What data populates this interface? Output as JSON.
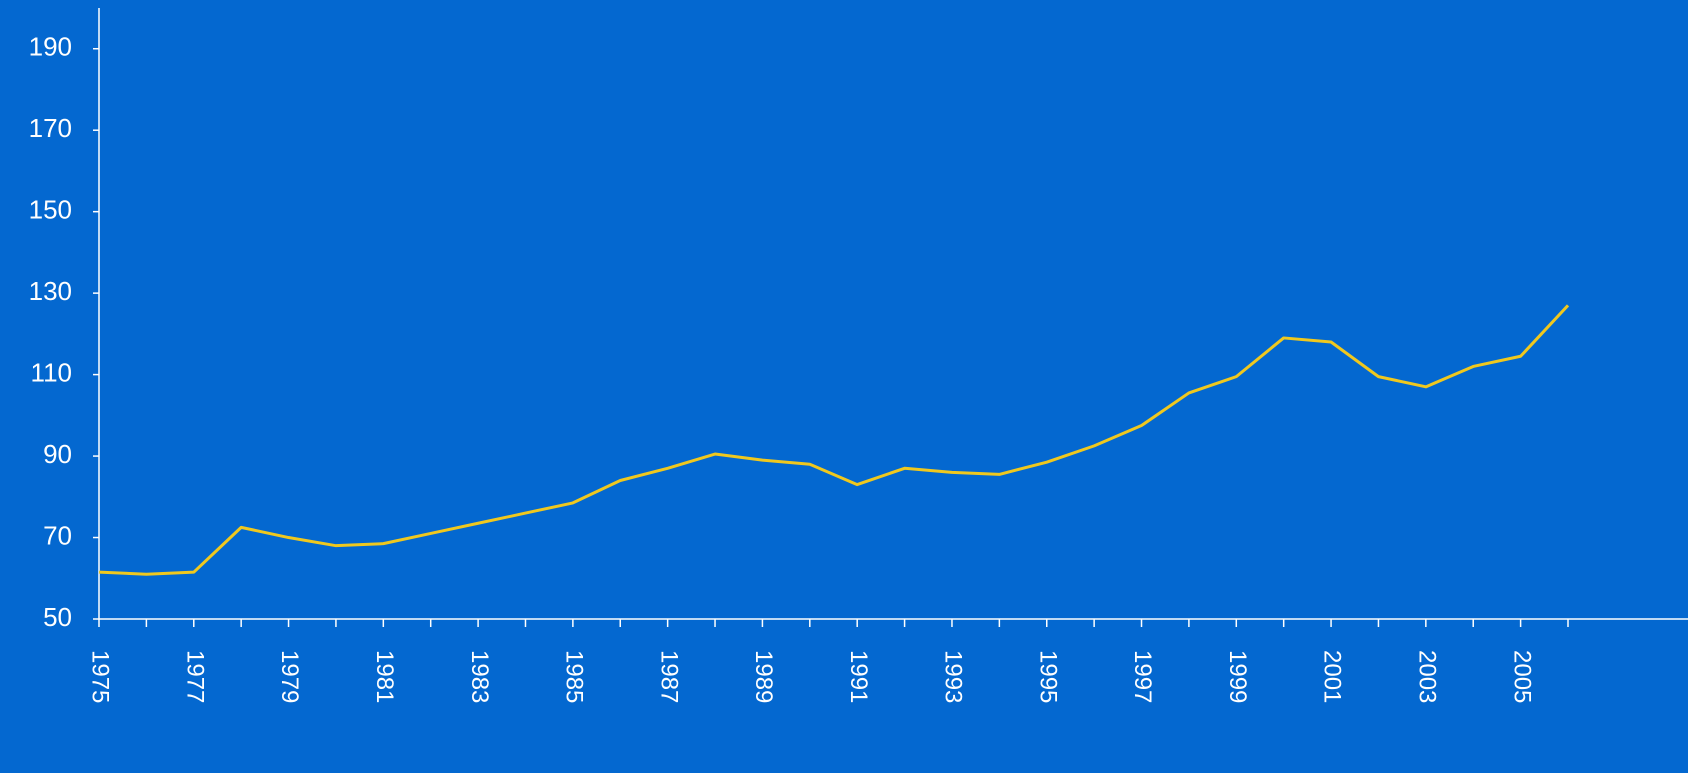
{
  "chart_data": {
    "type": "line",
    "x": [
      1975,
      1976,
      1977,
      1978,
      1979,
      1980,
      1981,
      1982,
      1983,
      1984,
      1985,
      1986,
      1987,
      1988,
      1989,
      1990,
      1991,
      1992,
      1993,
      1994,
      1995,
      1996,
      1997,
      1998,
      1999,
      2000,
      2001,
      2002,
      2003,
      2004,
      2005,
      2006
    ],
    "series": [
      {
        "color": "#f0c81e",
        "values": [
          61.5,
          61,
          61.5,
          72.5,
          70,
          68,
          68.5,
          71,
          73.5,
          76,
          78.5,
          84,
          87,
          90.5,
          89,
          88,
          83,
          87,
          86,
          85.5,
          88.5,
          92.5,
          97.5,
          105.5,
          109.5,
          119,
          118,
          109.5,
          107,
          112,
          114.5,
          127
        ]
      }
    ],
    "xlim": [
      1975,
      2006
    ],
    "xticks": [
      1975,
      1977,
      1979,
      1981,
      1983,
      1985,
      1987,
      1989,
      1991,
      1993,
      1995,
      1997,
      1999,
      2001,
      2003,
      2005
    ],
    "ylim": [
      50,
      200
    ],
    "yticks": [
      50,
      70,
      90,
      110,
      130,
      150,
      170,
      190
    ],
    "background": "#0468d0"
  }
}
